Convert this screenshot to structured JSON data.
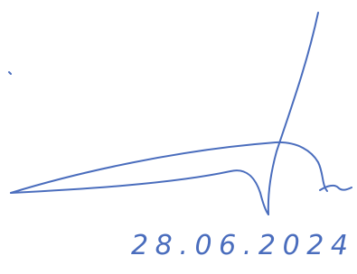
{
  "signature": {
    "date": "28.06.2024"
  }
}
